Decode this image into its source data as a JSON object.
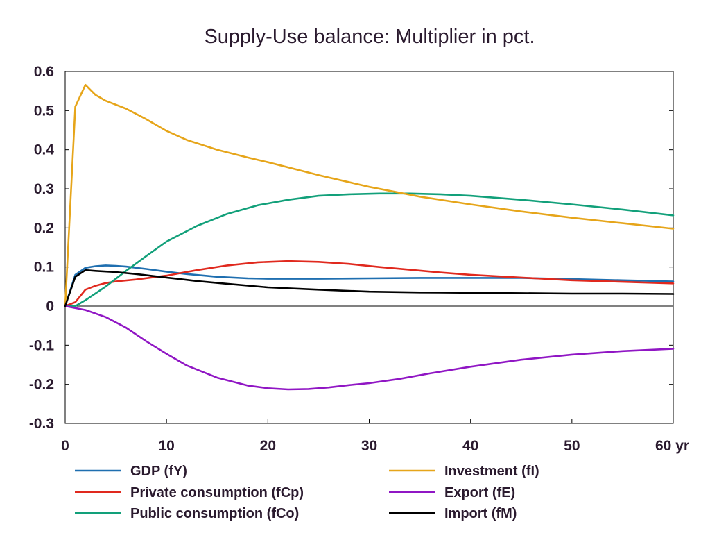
{
  "chart_data": {
    "type": "line",
    "title": "Supply-Use balance: Multiplier in pct.",
    "xlabel": "",
    "ylabel": "",
    "xlim": [
      0,
      60
    ],
    "ylim": [
      -0.3,
      0.6
    ],
    "x_ticks": [
      0,
      10,
      20,
      30,
      40,
      50,
      60
    ],
    "x_tick_labels": [
      "0",
      "10",
      "20",
      "30",
      "40",
      "50",
      "60 yr"
    ],
    "y_ticks": [
      0.6,
      0.5,
      0.4,
      0.3,
      0.2,
      0.1,
      0,
      -0.1,
      -0.2,
      -0.3
    ],
    "y_tick_labels": [
      "0.6",
      "0.5",
      "0.4",
      "0.3",
      "0.2",
      "0.1",
      "0",
      "-0.1",
      "-0.2",
      "-0.3"
    ],
    "grid": false,
    "zero_line": true,
    "legend_position": "bottom",
    "series": [
      {
        "name": "GDP (fY)",
        "color": "#1f6fb0",
        "points": [
          [
            0,
            0
          ],
          [
            1,
            0.08
          ],
          [
            2,
            0.098
          ],
          [
            3,
            0.102
          ],
          [
            4,
            0.104
          ],
          [
            5,
            0.103
          ],
          [
            6,
            0.101
          ],
          [
            8,
            0.095
          ],
          [
            10,
            0.088
          ],
          [
            12,
            0.082
          ],
          [
            15,
            0.075
          ],
          [
            18,
            0.071
          ],
          [
            20,
            0.07
          ],
          [
            25,
            0.07
          ],
          [
            30,
            0.071
          ],
          [
            35,
            0.072
          ],
          [
            40,
            0.072
          ],
          [
            45,
            0.072
          ],
          [
            50,
            0.069
          ],
          [
            55,
            0.066
          ],
          [
            60,
            0.063
          ]
        ]
      },
      {
        "name": "Private consumption (fCp)",
        "color": "#e0291e",
        "points": [
          [
            0,
            0
          ],
          [
            1,
            0.01
          ],
          [
            2,
            0.042
          ],
          [
            3,
            0.052
          ],
          [
            4,
            0.059
          ],
          [
            5,
            0.063
          ],
          [
            7,
            0.068
          ],
          [
            10,
            0.078
          ],
          [
            13,
            0.092
          ],
          [
            16,
            0.104
          ],
          [
            19,
            0.112
          ],
          [
            22,
            0.115
          ],
          [
            25,
            0.113
          ],
          [
            28,
            0.108
          ],
          [
            31,
            0.1
          ],
          [
            34,
            0.093
          ],
          [
            37,
            0.086
          ],
          [
            40,
            0.08
          ],
          [
            45,
            0.073
          ],
          [
            50,
            0.066
          ],
          [
            55,
            0.062
          ],
          [
            60,
            0.058
          ]
        ]
      },
      {
        "name": "Public consumption (fCo)",
        "color": "#12a07a",
        "points": [
          [
            0,
            0
          ],
          [
            1,
            0
          ],
          [
            2,
            0.015
          ],
          [
            4,
            0.05
          ],
          [
            6,
            0.09
          ],
          [
            8,
            0.128
          ],
          [
            10,
            0.165
          ],
          [
            13,
            0.205
          ],
          [
            16,
            0.236
          ],
          [
            19,
            0.258
          ],
          [
            22,
            0.272
          ],
          [
            25,
            0.282
          ],
          [
            28,
            0.286
          ],
          [
            31,
            0.288
          ],
          [
            34,
            0.288
          ],
          [
            37,
            0.286
          ],
          [
            40,
            0.282
          ],
          [
            45,
            0.272
          ],
          [
            50,
            0.26
          ],
          [
            55,
            0.247
          ],
          [
            60,
            0.232
          ]
        ]
      },
      {
        "name": "Investment (fI)",
        "color": "#e6a51a",
        "points": [
          [
            0,
            0
          ],
          [
            1,
            0.51
          ],
          [
            2,
            0.566
          ],
          [
            3,
            0.54
          ],
          [
            4,
            0.525
          ],
          [
            6,
            0.505
          ],
          [
            8,
            0.478
          ],
          [
            10,
            0.448
          ],
          [
            12,
            0.425
          ],
          [
            15,
            0.4
          ],
          [
            18,
            0.38
          ],
          [
            20,
            0.368
          ],
          [
            25,
            0.335
          ],
          [
            30,
            0.305
          ],
          [
            35,
            0.28
          ],
          [
            40,
            0.26
          ],
          [
            45,
            0.242
          ],
          [
            50,
            0.226
          ],
          [
            55,
            0.212
          ],
          [
            60,
            0.198
          ]
        ]
      },
      {
        "name": "Export (fE)",
        "color": "#9016c4",
        "points": [
          [
            0,
            0
          ],
          [
            2,
            -0.01
          ],
          [
            4,
            -0.028
          ],
          [
            6,
            -0.055
          ],
          [
            8,
            -0.09
          ],
          [
            10,
            -0.122
          ],
          [
            12,
            -0.152
          ],
          [
            15,
            -0.183
          ],
          [
            18,
            -0.203
          ],
          [
            20,
            -0.21
          ],
          [
            22,
            -0.213
          ],
          [
            24,
            -0.212
          ],
          [
            26,
            -0.208
          ],
          [
            28,
            -0.202
          ],
          [
            30,
            -0.197
          ],
          [
            33,
            -0.186
          ],
          [
            36,
            -0.172
          ],
          [
            40,
            -0.155
          ],
          [
            45,
            -0.137
          ],
          [
            50,
            -0.124
          ],
          [
            55,
            -0.115
          ],
          [
            60,
            -0.109
          ]
        ]
      },
      {
        "name": "Import (fM)",
        "color": "#000000",
        "points": [
          [
            0,
            0
          ],
          [
            1,
            0.075
          ],
          [
            2,
            0.092
          ],
          [
            3,
            0.09
          ],
          [
            5,
            0.087
          ],
          [
            7,
            0.082
          ],
          [
            10,
            0.073
          ],
          [
            13,
            0.064
          ],
          [
            16,
            0.057
          ],
          [
            20,
            0.048
          ],
          [
            25,
            0.042
          ],
          [
            30,
            0.037
          ],
          [
            35,
            0.035
          ],
          [
            40,
            0.034
          ],
          [
            45,
            0.033
          ],
          [
            50,
            0.032
          ],
          [
            55,
            0.032
          ],
          [
            60,
            0.031
          ]
        ]
      }
    ]
  }
}
